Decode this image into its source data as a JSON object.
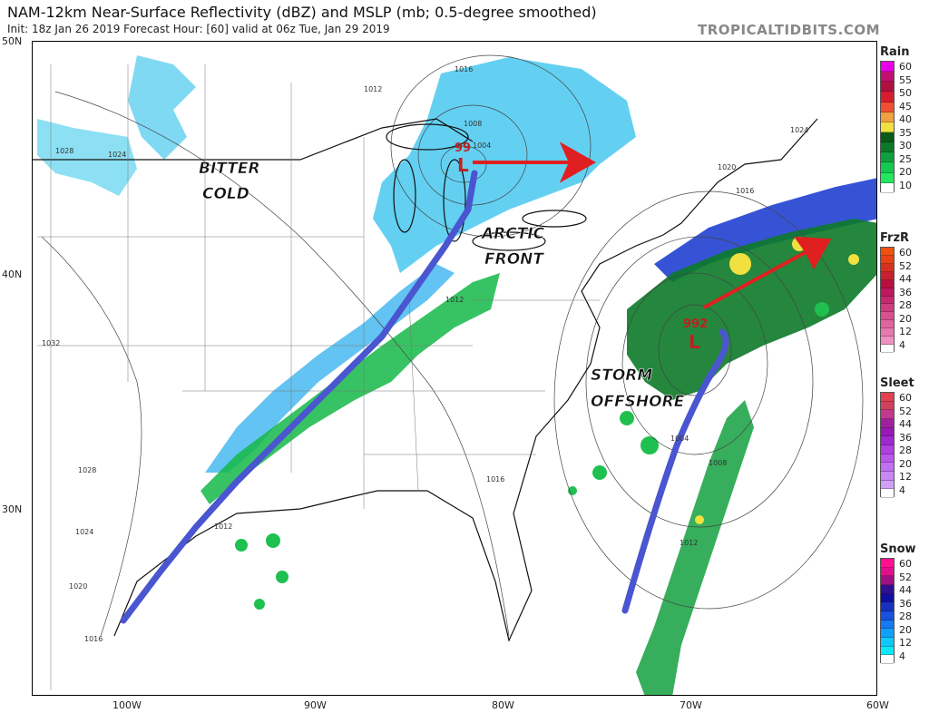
{
  "header": {
    "title": "NAM-12km Near-Surface Reflectivity (dBZ) and MSLP (mb; 0.5-degree smoothed)",
    "subtitle": "Init: 18z Jan 26 2019   Forecast Hour: [60]   valid at 06z Tue, Jan 29 2019",
    "watermark": "TROPICALTIDBITS.COM"
  },
  "axes": {
    "lat_labels": [
      "50N",
      "40N",
      "30N"
    ],
    "lon_labels": [
      "100W",
      "90W",
      "80W",
      "70W",
      "60W"
    ]
  },
  "annotations": {
    "bitter_cold": [
      "BITTER",
      "COLD"
    ],
    "arctic_front": [
      "ARCTIC",
      "FRONT"
    ],
    "storm_offshore": [
      "STORM",
      "OFFSHORE"
    ],
    "low1_pressure": "99",
    "low1_symbol": "L",
    "low2_pressure": "992",
    "low2_symbol": "L",
    "arrow_color": "#e02020",
    "front_line_color": "#4a55d0"
  },
  "isobar_labels": [
    "1016",
    "1012",
    "1008",
    "1004",
    "1028",
    "1024",
    "1020",
    "1024",
    "1016",
    "1032",
    "1028",
    "1024",
    "1020",
    "1016",
    "1012",
    "1016",
    "1004",
    "1008",
    "1012",
    "1012"
  ],
  "legend": [
    {
      "title": "Rain",
      "levels": [
        "60",
        "55",
        "50",
        "45",
        "40",
        "35",
        "30",
        "25",
        "20",
        "10"
      ],
      "colors": [
        "#e800e8",
        "#c01070",
        "#b01040",
        "#d81c30",
        "#f05030",
        "#f0a040",
        "#f0e040",
        "#0a5a1a",
        "#0c7a28",
        "#10a040",
        "#14c850",
        "#22e860",
        "#ffffff"
      ]
    },
    {
      "title": "FrzR",
      "levels": [
        "60",
        "52",
        "44",
        "36",
        "28",
        "20",
        "12",
        "4"
      ],
      "colors": [
        "#f05010",
        "#e84018",
        "#d83020",
        "#c82030",
        "#b81040",
        "#c01860",
        "#c82870",
        "#d03c80",
        "#d85090",
        "#e064a0",
        "#e878b0",
        "#f090c0",
        "#ffffff"
      ]
    },
    {
      "title": "Sleet",
      "levels": [
        "60",
        "52",
        "44",
        "36",
        "28",
        "20",
        "12",
        "4"
      ],
      "colors": [
        "#e04050",
        "#d04060",
        "#c03890",
        "#a020a0",
        "#9818b8",
        "#a028d0",
        "#b040e0",
        "#b858e8",
        "#c070f0",
        "#c888f4",
        "#d0a0f8",
        "#ffffff"
      ]
    },
    {
      "title": "Snow",
      "levels": [
        "60",
        "52",
        "44",
        "36",
        "28",
        "20",
        "12",
        "4"
      ],
      "colors": [
        "#ff1090",
        "#e0108a",
        "#a01080",
        "#301090",
        "#1010a0",
        "#1830c0",
        "#1850e0",
        "#1878f0",
        "#10a0f8",
        "#10c8f8",
        "#10e8f8",
        "#ffffff"
      ]
    }
  ]
}
